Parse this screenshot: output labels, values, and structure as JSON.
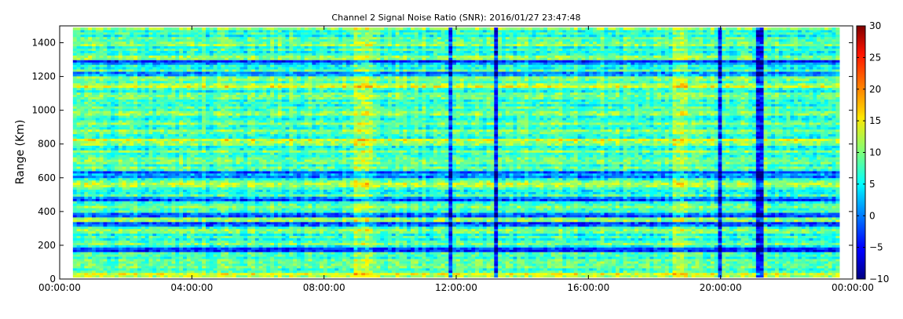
{
  "chart_data": {
    "type": "heatmap",
    "title": "Channel 2 Signal Noise Ratio (SNR): 2016/01/27 23:47:48",
    "xlabel": "",
    "ylabel": "Range (Km)",
    "x_ticks": [
      "00:00:00",
      "04:00:00",
      "08:00:00",
      "12:00:00",
      "16:00:00",
      "20:00:00",
      "00:00:00"
    ],
    "x_range_hours": [
      0,
      24
    ],
    "y_ticks": [
      0,
      200,
      400,
      600,
      800,
      1000,
      1200,
      1400
    ],
    "ylim": [
      0,
      1500
    ],
    "colorbar": {
      "ticks": [
        -10,
        -5,
        0,
        5,
        10,
        15,
        20,
        25,
        30
      ],
      "range": [
        -10,
        30
      ],
      "colormap": "jet"
    },
    "grid": false,
    "features": {
      "low_snr_range_bands_km": [
        180,
        330,
        380,
        470,
        620,
        1210,
        1290
      ],
      "high_snr_range_bands_km": [
        20,
        560,
        810,
        1150
      ],
      "low_snr_time_columns_hours": [
        11.8,
        13.2,
        20.0,
        21.2
      ],
      "high_snr_time_windows_hours": [
        [
          8.9,
          9.5
        ],
        [
          18.5,
          19.0
        ]
      ],
      "typical_snr_db": 8
    }
  }
}
